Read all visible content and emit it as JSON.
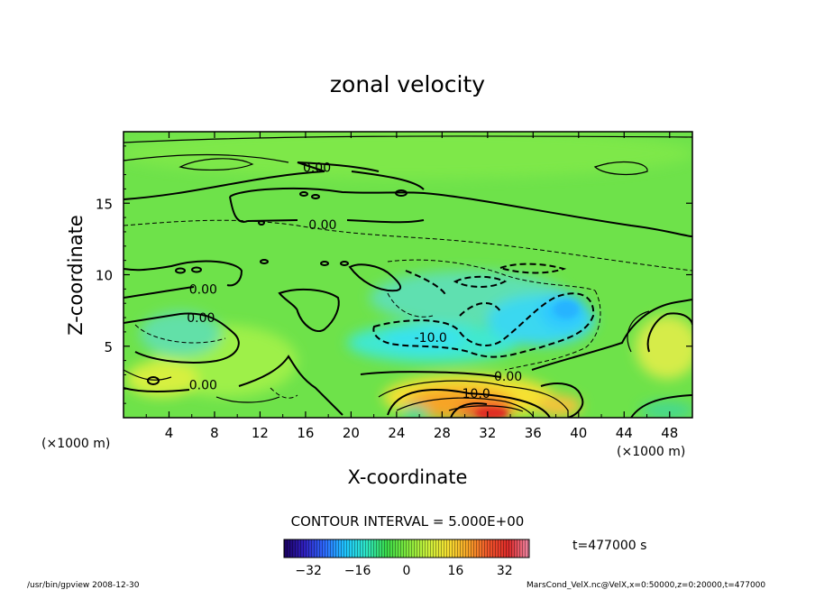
{
  "chart_data": {
    "type": "heatmap",
    "title": "zonal velocity",
    "xlabel": "X-coordinate",
    "ylabel": "Z-coordinate",
    "x_unit_left": "(×1000 m)",
    "x_unit_right": "(×1000 m)",
    "x_ticks": [
      "4",
      "8",
      "12",
      "16",
      "20",
      "24",
      "28",
      "32",
      "36",
      "40",
      "44",
      "48"
    ],
    "y_ticks": [
      "5",
      "10",
      "15"
    ],
    "x_ticks_values": [
      4,
      8,
      12,
      16,
      20,
      24,
      28,
      32,
      36,
      40,
      44,
      48
    ],
    "y_ticks_values": [
      5,
      10,
      15
    ],
    "xlim": [
      0,
      50
    ],
    "ylim": [
      0,
      20
    ],
    "contour_labels": [
      {
        "text": "0.00",
        "x": 17.0,
        "y": 17.5
      },
      {
        "text": "0.00",
        "x": 17.5,
        "y": 13.5
      },
      {
        "text": "0.00",
        "x": 7.0,
        "y": 9.0
      },
      {
        "text": "0.00",
        "x": 6.8,
        "y": 7.0
      },
      {
        "text": "0.00",
        "x": 7.0,
        "y": 2.3
      },
      {
        "text": "-10.0",
        "x": 27.0,
        "y": 5.6
      },
      {
        "text": "0.00",
        "x": 33.8,
        "y": 2.9
      },
      {
        "text": "10.0",
        "x": 31.0,
        "y": 1.7
      }
    ],
    "velocity_regions": [
      {
        "kind": "positive-max",
        "x": [
          30,
          35
        ],
        "z": [
          0,
          1.0
        ],
        "value": "~25 to 32"
      },
      {
        "kind": "positive",
        "x": [
          24,
          38
        ],
        "z": [
          0,
          2.5
        ],
        "value": "~10 to 20"
      },
      {
        "kind": "negative-min",
        "x": [
          36,
          41
        ],
        "z": [
          6,
          9
        ],
        "value": "~-12"
      },
      {
        "kind": "negative",
        "x": [
          22,
          34
        ],
        "z": [
          4,
          7
        ],
        "value": "~-10"
      }
    ],
    "contour_interval": "CONTOUR INTERVAL = 5.000E+00",
    "colorbar": {
      "range": [
        -40,
        40
      ],
      "tick_labels": [
        "−32",
        "−16",
        "0",
        "16",
        "32"
      ],
      "tick_values": [
        -32,
        -16,
        0,
        16,
        32
      ],
      "colors": [
        "#1a0060",
        "#3020c0",
        "#2d6cff",
        "#1fc6ff",
        "#2ee6c8",
        "#39d94a",
        "#7ee83d",
        "#c8f03c",
        "#f6e132",
        "#f7a428",
        "#f0542a",
        "#dc2a2a",
        "#f08aa8"
      ]
    },
    "time_label": "t=477000 s",
    "footer_left": "/usr/bin/gpview  2008-12-30",
    "footer_right": "MarsCond_VelX.nc@VelX,x=0:50000,z=0:20000,t=477000"
  }
}
